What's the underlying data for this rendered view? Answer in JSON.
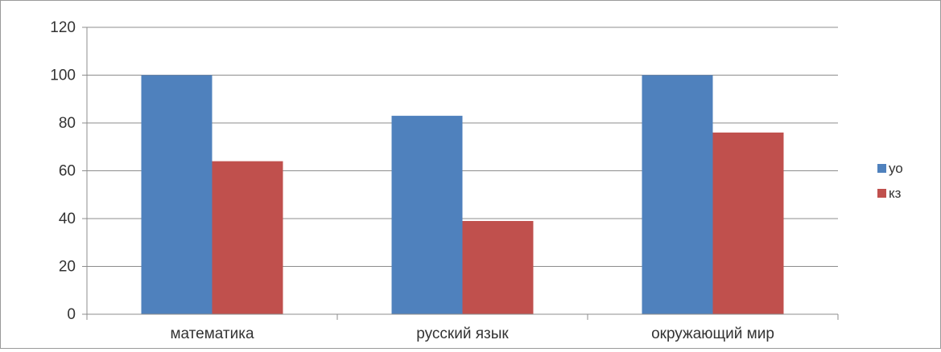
{
  "chart_data": {
    "type": "bar",
    "categories": [
      "математика",
      "русский язык",
      "окружающий мир"
    ],
    "series": [
      {
        "name": "уо",
        "values": [
          100,
          83,
          100
        ],
        "color": "#4f81bd"
      },
      {
        "name": "кз",
        "values": [
          64,
          39,
          76
        ],
        "color": "#c0504d"
      }
    ],
    "ylim": [
      0,
      120
    ],
    "yticks": [
      0,
      20,
      40,
      60,
      80,
      100,
      120
    ],
    "grid": true,
    "legend": "right",
    "title": "",
    "xlabel": "",
    "ylabel": ""
  }
}
